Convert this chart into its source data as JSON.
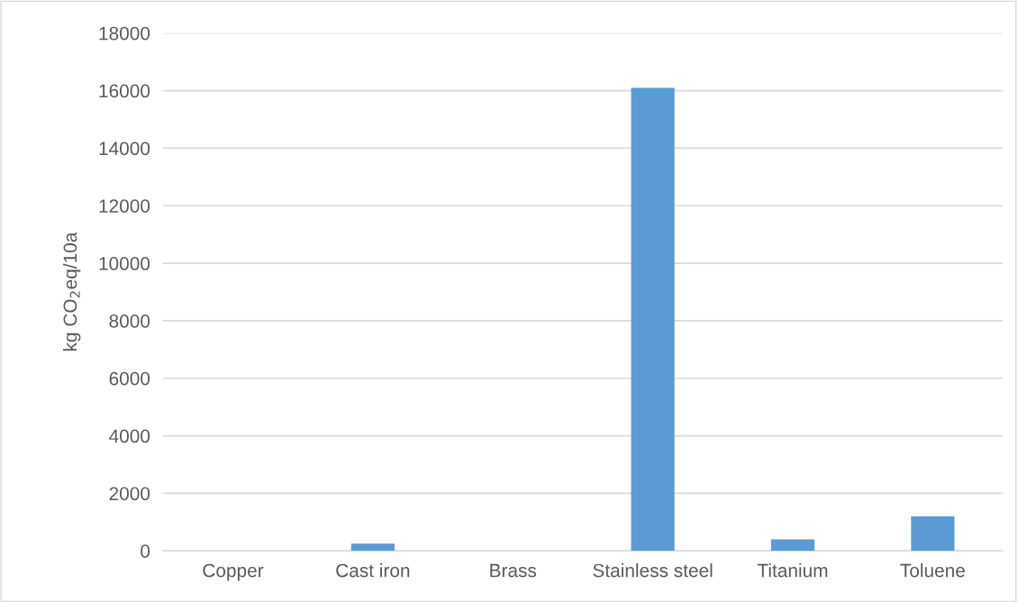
{
  "chart_data": {
    "type": "bar",
    "ylabel": "kg CO$_{2}$eq/10a",
    "categories": [
      "Copper",
      "Cast iron",
      "Brass",
      "Stainless steel",
      "Titanium",
      "Toluene"
    ],
    "values": [
      0,
      250,
      0,
      16100,
      400,
      1200
    ],
    "color": "#5b9bd5",
    "ylim": [
      0,
      18000
    ],
    "yticks": [
      0,
      2000,
      4000,
      6000,
      8000,
      10000,
      12000,
      14000,
      16000,
      18000
    ],
    "grid": "y"
  }
}
